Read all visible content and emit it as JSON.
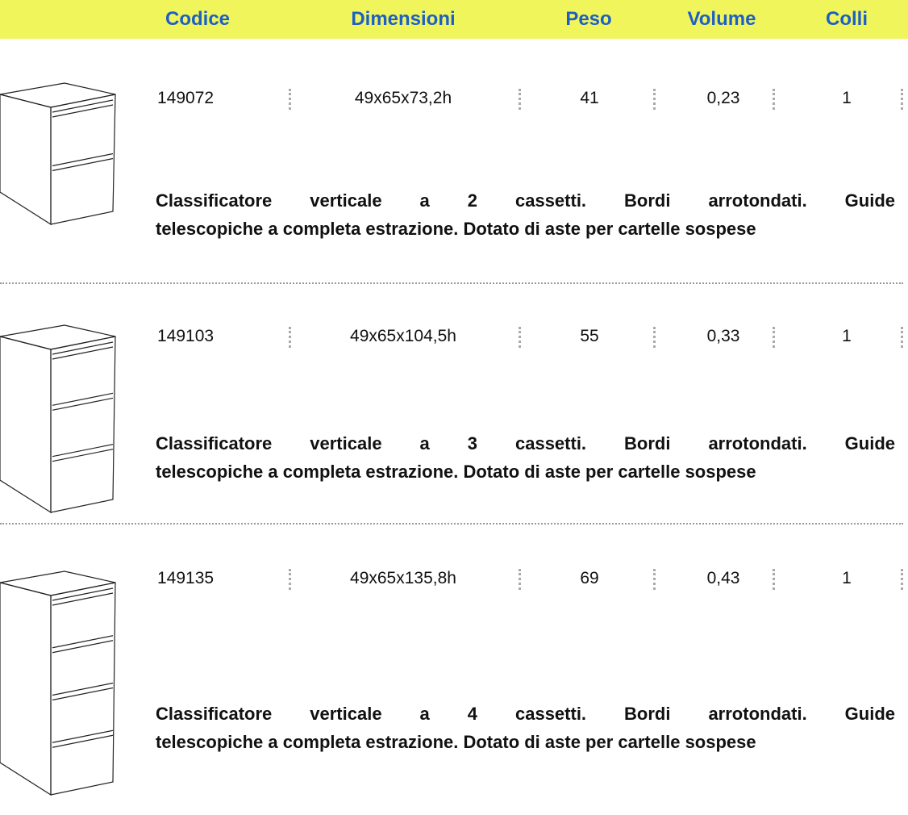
{
  "header": {
    "columns": [
      "Codice",
      "Dimensioni",
      "Peso",
      "Volume",
      "Colli"
    ]
  },
  "products": [
    {
      "code": "149072",
      "dimensions": "49x65x73,2h",
      "weight": "41",
      "volume": "0,23",
      "packages": "1",
      "description_lines": [
        "Classificatore verticale a 2 cassetti. Bordi arrotondati. Guide",
        "telescopiche a completa estrazione. Dotato di aste per cartelle sospese"
      ]
    },
    {
      "code": "149103",
      "dimensions": "49x65x104,5h",
      "weight": "55",
      "volume": "0,33",
      "packages": "1",
      "description_lines": [
        "Classificatore verticale a 3 cassetti. Bordi arrotondati. Guide",
        "telescopiche a completa estrazione. Dotato di aste per cartelle sospese"
      ]
    },
    {
      "code": "149135",
      "dimensions": "49x65x135,8h",
      "weight": "69",
      "volume": "0,43",
      "packages": "1",
      "description_lines": [
        "Classificatore verticale a 4 cassetti. Bordi arrotondati. Guide",
        "telescopiche a completa estrazione. Dotato di aste per cartelle sospese"
      ]
    }
  ]
}
